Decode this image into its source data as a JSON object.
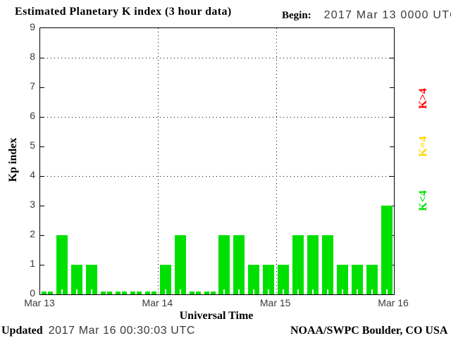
{
  "header": {
    "title": "Estimated Planetary K index (3 hour data)",
    "begin_label": "Begin:",
    "begin_value": "2017 Mar 13 0000 UTC"
  },
  "footer": {
    "updated_label": "Updated",
    "updated_value": "2017 Mar 16 00:30:03 UTC",
    "credit": "NOAA/SWPC Boulder, CO USA"
  },
  "chart_data": {
    "type": "bar",
    "title": "Estimated Planetary K index (3 hour data)",
    "xlabel": "Universal Time",
    "ylabel": "Kp index",
    "ylim": [
      0,
      9
    ],
    "yticks": [
      0,
      1,
      2,
      3,
      4,
      5,
      6,
      7,
      8,
      9
    ],
    "gridlines_y": [
      4,
      6,
      8
    ],
    "grid": "dotted horizontal at 4,6,8 and dotted vertical at day boundaries",
    "xticks": [
      "Mar 13",
      "Mar 14",
      "Mar 15",
      "Mar 16"
    ],
    "begin": "2017 Mar 13 0000 UTC",
    "interval_hours": 3,
    "values": [
      0,
      2,
      1,
      1,
      0,
      0,
      0,
      0,
      1,
      2,
      0,
      0,
      2,
      2,
      1,
      1,
      1,
      2,
      2,
      2,
      1,
      1,
      1,
      3
    ],
    "legend": [
      {
        "label": "K>4",
        "color": "#ff0000"
      },
      {
        "label": "K=4",
        "color": "#ffd700"
      },
      {
        "label": "K<4",
        "color": "#00e000"
      }
    ],
    "legend_position": "right, rotated 90deg",
    "color_rule": {
      "below4": "#00e000",
      "equal4": "#ffd700",
      "above4": "#ff0000"
    }
  }
}
